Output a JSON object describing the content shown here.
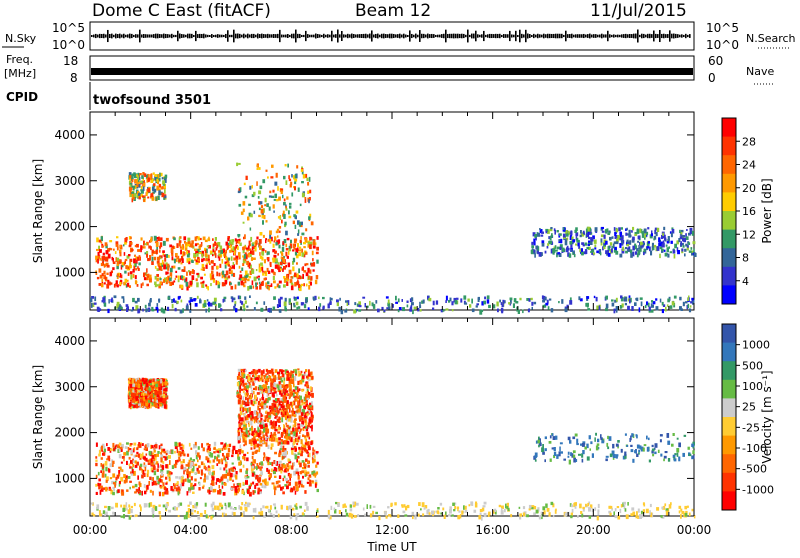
{
  "header": {
    "station": "Dome C East (fitACF)",
    "beam": "Beam 12",
    "date": "11/Jul/2015"
  },
  "strips": {
    "nsky_label": "N.Sky",
    "nsky_ticks": [
      "10^5",
      "10^0"
    ],
    "nsearch_label": "N.Search",
    "nsearch_ticks": [
      "10^5",
      "10^0"
    ],
    "freq_label_1": "Freq.",
    "freq_label_2": "[MHz]",
    "freq_ticks": [
      "18",
      "8"
    ],
    "nave_label": "Nave",
    "nave_ticks": [
      "60",
      "0"
    ],
    "cpid_label": "CPID",
    "cpid_value": "twofsound 3501"
  },
  "chart_data": [
    {
      "type": "heatmap",
      "name": "power",
      "ylabel": "Slant Range [km]",
      "yticks": [
        "4000",
        "3000",
        "2000",
        "1000"
      ],
      "colorbar_label": "Power [dB]",
      "colorbar_ticks": [
        "28",
        "24",
        "20",
        "16",
        "12",
        "8",
        "4"
      ],
      "colorbar_colors": [
        "#ff0000",
        "#ff3300",
        "#ff6600",
        "#ff9900",
        "#ffcc00",
        "#99cc33",
        "#339966",
        "#336699",
        "#3333cc",
        "#0000ff"
      ],
      "echo_regions": [
        {
          "t": [
            0.2,
            9.0
          ],
          "r": [
            700,
            1800
          ],
          "level": "high"
        },
        {
          "t": [
            1.5,
            3.0
          ],
          "r": [
            2600,
            3200
          ],
          "level": "mid"
        },
        {
          "t": [
            5.8,
            8.8
          ],
          "r": [
            1800,
            3400
          ],
          "level": "mid"
        },
        {
          "t": [
            0.0,
            24.0
          ],
          "r": [
            180,
            500
          ],
          "level": "low"
        },
        {
          "t": [
            17.5,
            24.0
          ],
          "r": [
            1400,
            2000
          ],
          "level": "low"
        }
      ]
    },
    {
      "type": "heatmap",
      "name": "velocity",
      "xlabel": "Time UT",
      "ylabel": "Slant Range [km]",
      "yticks": [
        "4000",
        "3000",
        "2000",
        "1000"
      ],
      "colorbar_label": "Velocity [m s⁻¹]",
      "colorbar_ticks": [
        "1000",
        "500",
        "100",
        "25",
        "-25",
        "-100",
        "-500",
        "-1000"
      ],
      "colorbar_colors": [
        "#3355aa",
        "#3377bb",
        "#339966",
        "#66bb44",
        "#cccccc",
        "#ffcc33",
        "#ff9900",
        "#ff6600",
        "#ff3300",
        "#ff0000"
      ],
      "xticks": [
        "00:00",
        "04:00",
        "08:00",
        "12:00",
        "16:00",
        "20:00",
        "00:00"
      ],
      "xlim": [
        0,
        24
      ],
      "ylim": [
        180,
        4500
      ],
      "echo_regions": [
        {
          "t": [
            0.2,
            9.0
          ],
          "r": [
            700,
            1800
          ],
          "level": "neg"
        },
        {
          "t": [
            1.5,
            3.0
          ],
          "r": [
            2600,
            3200
          ],
          "level": "neg"
        },
        {
          "t": [
            5.8,
            8.8
          ],
          "r": [
            1800,
            3400
          ],
          "level": "neg"
        },
        {
          "t": [
            0.0,
            24.0
          ],
          "r": [
            180,
            500
          ],
          "level": "ground"
        },
        {
          "t": [
            17.5,
            24.0
          ],
          "r": [
            1400,
            2000
          ],
          "level": "pos"
        }
      ]
    }
  ]
}
